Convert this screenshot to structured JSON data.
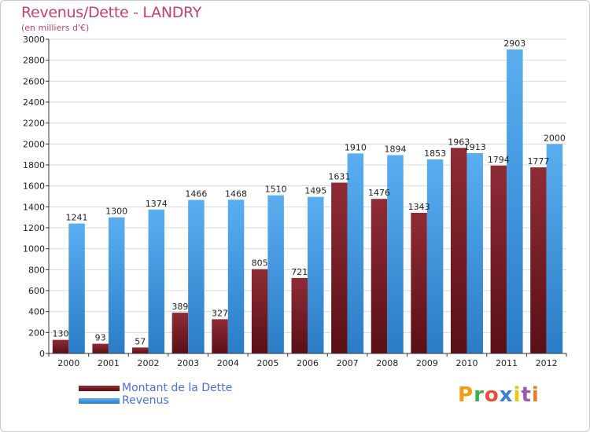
{
  "title": "Revenus/Dette - LANDRY",
  "subtitle": "(en milliers d'€)",
  "logo": {
    "text": "Proxiti",
    "colors": [
      "#f39c12",
      "#3fae49",
      "#e74c3c",
      "#3b7dd8",
      "#f1c40f",
      "#9b59b6",
      "#e67e22"
    ]
  },
  "colors": {
    "dette": "#7a1e28",
    "revenus": "#3c94dd",
    "grid": "#d8d8d8",
    "title": "#c4406f"
  },
  "chart_data": {
    "type": "bar",
    "categories": [
      "2000",
      "2001",
      "2002",
      "2003",
      "2004",
      "2005",
      "2006",
      "2007",
      "2008",
      "2009",
      "2010",
      "2011",
      "2012"
    ],
    "series": [
      {
        "name": "Montant de la Dette",
        "values": [
          130,
          93,
          57,
          389,
          327,
          805,
          721,
          1631,
          1476,
          1343,
          1963,
          1794,
          1777
        ]
      },
      {
        "name": "Revenus",
        "values": [
          1241,
          1300,
          1374,
          1466,
          1468,
          1510,
          1495,
          1910,
          1894,
          1853,
          1913,
          2903,
          2000
        ]
      }
    ],
    "yticks": [
      0,
      200,
      400,
      600,
      800,
      1000,
      1200,
      1400,
      1600,
      1800,
      2000,
      2200,
      2400,
      2600,
      2800,
      3000
    ],
    "ylim": [
      0,
      3000
    ],
    "grid": true,
    "legend": "bottom-left"
  }
}
